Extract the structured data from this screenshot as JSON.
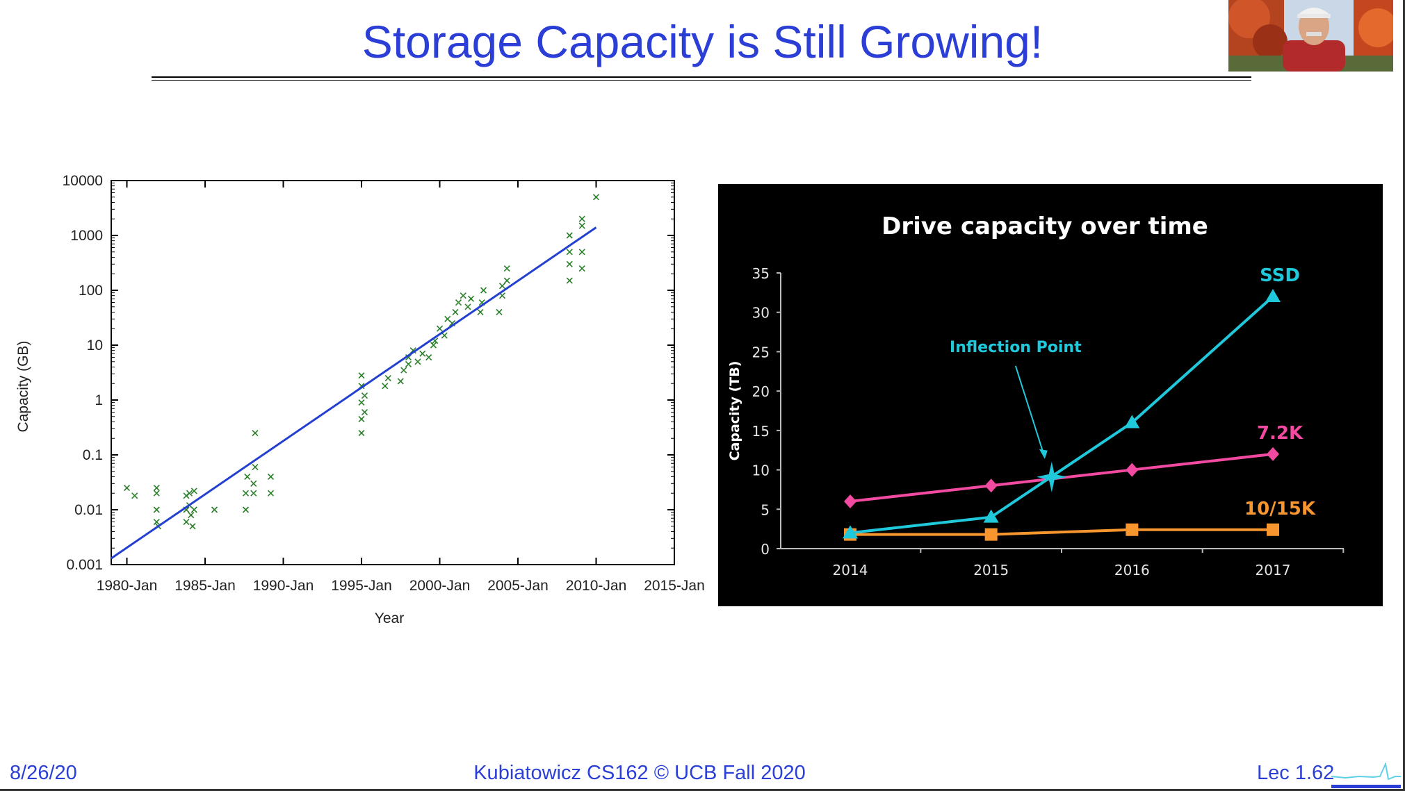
{
  "slide": {
    "title": "Storage Capacity is Still Growing!",
    "footer_date": "8/26/20",
    "footer_center": "Kubiatowicz CS162 © UCB Fall 2020",
    "footer_page": "Lec 1.62",
    "title_color": "#2b3fd6"
  },
  "webcam": {
    "icon": "person-video-thumbnail-icon"
  },
  "chart_data": [
    {
      "type": "scatter",
      "title": "",
      "xlabel": "Year",
      "ylabel": "Capacity (GB)",
      "y_scale": "log",
      "ylim": [
        0.001,
        10000
      ],
      "xlim": [
        1979,
        2015
      ],
      "x_tick_labels": [
        "1980-Jan",
        "1985-Jan",
        "1990-Jan",
        "1995-Jan",
        "2000-Jan",
        "2005-Jan",
        "2010-Jan",
        "2015-Jan"
      ],
      "x_tick_years": [
        1980,
        1985,
        1990,
        1995,
        2000,
        2005,
        2010,
        2015
      ],
      "y_tick_labels": [
        "10000",
        "1000",
        "100",
        "10",
        "1",
        "0.1",
        "0.01",
        "0.001"
      ],
      "y_tick_values": [
        10000,
        1000,
        100,
        10,
        1,
        0.1,
        0.01,
        0.001
      ],
      "marker_color": "#2a7f2a",
      "trend_color": "#2340d0",
      "trend_line": {
        "x": [
          1979,
          2010
        ],
        "y": [
          0.0013,
          1400
        ]
      },
      "points": [
        [
          1980,
          0.025
        ],
        [
          1980.5,
          0.018
        ],
        [
          1981.9,
          0.006
        ],
        [
          1981.9,
          0.01
        ],
        [
          1981.9,
          0.02
        ],
        [
          1981.9,
          0.025
        ],
        [
          1982,
          0.005
        ],
        [
          1983.8,
          0.006
        ],
        [
          1983.8,
          0.01
        ],
        [
          1983.8,
          0.018
        ],
        [
          1984,
          0.02
        ],
        [
          1984,
          0.012
        ],
        [
          1984.1,
          0.008
        ],
        [
          1984.2,
          0.005
        ],
        [
          1984.3,
          0.01
        ],
        [
          1984.3,
          0.022
        ],
        [
          1985.6,
          0.01
        ],
        [
          1987.6,
          0.01
        ],
        [
          1987.6,
          0.02
        ],
        [
          1987.7,
          0.04
        ],
        [
          1988.1,
          0.02
        ],
        [
          1988.1,
          0.03
        ],
        [
          1988.2,
          0.06
        ],
        [
          1988.2,
          0.25
        ],
        [
          1989.2,
          0.02
        ],
        [
          1989.2,
          0.04
        ],
        [
          1995,
          0.25
        ],
        [
          1995,
          0.45
        ],
        [
          1995,
          0.9
        ],
        [
          1995,
          1.8
        ],
        [
          1995,
          2.8
        ],
        [
          1995.2,
          0.6
        ],
        [
          1995.2,
          1.2
        ],
        [
          1996.5,
          1.8
        ],
        [
          1996.7,
          2.5
        ],
        [
          1997.5,
          2.2
        ],
        [
          1997.7,
          3.5
        ],
        [
          1998,
          4.5
        ],
        [
          1998,
          6
        ],
        [
          1998.3,
          8
        ],
        [
          1998.6,
          5
        ],
        [
          1998.9,
          7
        ],
        [
          1999.3,
          6
        ],
        [
          1999.6,
          10
        ],
        [
          1999.7,
          12
        ],
        [
          2000,
          20
        ],
        [
          2000.3,
          15
        ],
        [
          2000.5,
          30
        ],
        [
          2000.8,
          25
        ],
        [
          2001,
          40
        ],
        [
          2001.2,
          60
        ],
        [
          2001.5,
          80
        ],
        [
          2001.8,
          50
        ],
        [
          2002,
          70
        ],
        [
          2002.6,
          40
        ],
        [
          2002.7,
          60
        ],
        [
          2002.8,
          100
        ],
        [
          2003.8,
          40
        ],
        [
          2004,
          80
        ],
        [
          2004,
          120
        ],
        [
          2004.3,
          150
        ],
        [
          2004.3,
          250
        ],
        [
          2008.3,
          150
        ],
        [
          2008.3,
          300
        ],
        [
          2008.3,
          500
        ],
        [
          2008.3,
          1000
        ],
        [
          2009.1,
          250
        ],
        [
          2009.1,
          500
        ],
        [
          2009.1,
          1500
        ],
        [
          2009.1,
          2000
        ],
        [
          2010,
          5000
        ]
      ]
    },
    {
      "type": "line",
      "title": "Drive capacity over time",
      "xlabel": "",
      "ylabel": "Capacity (TB)",
      "ylim": [
        0,
        35
      ],
      "y_ticks": [
        0,
        5,
        10,
        15,
        20,
        25,
        30,
        35
      ],
      "categories": [
        "2014",
        "2015",
        "2016",
        "2017"
      ],
      "x_positions": [
        0,
        1,
        2,
        3
      ],
      "series": [
        {
          "name": "SSD",
          "marker": "triangle",
          "color": "#20c8dc",
          "values": [
            2,
            4,
            16,
            32
          ]
        },
        {
          "name": "7.2K",
          "marker": "diamond",
          "color": "#f24aa0",
          "values": [
            6,
            8,
            10,
            12
          ]
        },
        {
          "name": "10/15K",
          "marker": "square",
          "color": "#f7952f",
          "values": [
            1.8,
            1.8,
            2.4,
            2.4
          ]
        }
      ],
      "annotations": [
        {
          "text": "Inflection Point",
          "color": "#20c8dc",
          "point": [
            1.43,
            9.1
          ]
        }
      ],
      "background": "#000000"
    }
  ]
}
